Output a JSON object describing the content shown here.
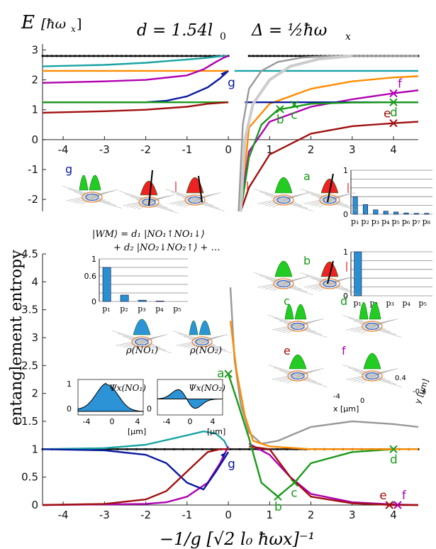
{
  "header": {
    "energy_label": "E",
    "energy_unit": "[ħω",
    "energy_unit_sub": "x",
    "energy_unit_close": "]",
    "d_param": "d = 1.54l",
    "d_param_sub": "0",
    "delta_param": "Δ = ½ħω",
    "delta_param_sub": "x"
  },
  "state_formula": {
    "line1": "|WM⟩ = d₁ |NO₁↑NO₁↓⟩",
    "line2": "+ d₂ |NO₂↓NO₂↑⟩ + …"
  },
  "inset_labels": {
    "rho1": "ρ(NO₁)",
    "rho2": "ρ(NO₂)",
    "psi1": "Ψx(NO₁)",
    "psi2": "Ψx(NO₂)",
    "psi_unit": "[μm]",
    "psi_ticks": [
      "-4",
      "0",
      "4"
    ],
    "psi_yticks": [
      "1",
      "0"
    ],
    "density_panels": [
      "g",
      "a",
      "b",
      "c",
      "d",
      "e",
      "f"
    ],
    "axis_x": "x [μm]",
    "axis_y": "y [μm]",
    "axis_ticks": [
      "-4",
      "0",
      "4",
      "0.4",
      "-0.4"
    ]
  },
  "colors": {
    "black": "#111111",
    "gray": "#999999",
    "lightgray": "#cccccc",
    "teal": "#1aa3a3",
    "orange": "#ff8c00",
    "magenta": "#b000b0",
    "blue": "#0a1a9c",
    "green": "#1a9a1a",
    "red": "#a01010",
    "bar": "#2a8fd0",
    "density_green": "#22cc22",
    "density_red": "#ee2222",
    "density_blue": "#2b93d6"
  },
  "chart_data": [
    {
      "type": "line",
      "title": "",
      "xlabel": "",
      "ylabel": "E [ħωx]",
      "xlim": [
        -4.5,
        4.6
      ],
      "ylim": [
        -2.4,
        3.2
      ],
      "xticks": [
        -4,
        -3,
        -2,
        -1,
        0,
        1,
        2,
        3,
        4
      ],
      "yticks": [
        -2,
        -1,
        0,
        1,
        2,
        3
      ],
      "series": [
        {
          "color": "black",
          "x": [
            -4.5,
            0
          ],
          "y": [
            2.8,
            2.8
          ]
        },
        {
          "color": "black",
          "x": [
            0.5,
            4.6
          ],
          "y": [
            2.8,
            2.8
          ]
        },
        {
          "color": "teal",
          "x": [
            -4.5,
            -3,
            -2,
            -1,
            -0.5,
            -0.2,
            0
          ],
          "y": [
            2.45,
            2.5,
            2.57,
            2.68,
            2.74,
            2.79,
            2.8
          ]
        },
        {
          "color": "teal",
          "x": [
            0.15,
            4.6
          ],
          "y": [
            2.3,
            2.3
          ]
        },
        {
          "color": "orange",
          "x": [
            -4.5,
            0
          ],
          "y": [
            2.3,
            2.3
          ]
        },
        {
          "color": "orange",
          "x": [
            0.3,
            0.5,
            1,
            2,
            3,
            4,
            4.6
          ],
          "y": [
            -2.4,
            0.4,
            1.2,
            1.7,
            1.95,
            2.08,
            2.12
          ]
        },
        {
          "color": "magenta",
          "x": [
            -4.5,
            -3,
            -2,
            -1,
            -0.6,
            -0.3,
            -0.1,
            0
          ],
          "y": [
            1.9,
            1.95,
            2.0,
            2.15,
            2.35,
            2.6,
            2.75,
            2.8
          ]
        },
        {
          "color": "magenta",
          "x": [
            0.28,
            0.5,
            1,
            2,
            3,
            4,
            4.6
          ],
          "y": [
            -2.4,
            -0.4,
            0.6,
            1.1,
            1.35,
            1.55,
            1.65
          ]
        },
        {
          "color": "blue",
          "x": [
            -4.5,
            -2,
            -1.5,
            -1,
            -0.5,
            -0.2,
            0
          ],
          "y": [
            1.25,
            1.25,
            1.3,
            1.45,
            1.75,
            2.05,
            2.3
          ]
        },
        {
          "color": "blue",
          "x": [
            0.4,
            4.6
          ],
          "y": [
            1.25,
            1.25
          ]
        },
        {
          "color": "green",
          "x": [
            -4.5,
            0
          ],
          "y": [
            1.25,
            1.25
          ]
        },
        {
          "color": "green",
          "x": [
            0.3,
            0.5,
            0.8,
            1.2,
            2,
            3,
            4,
            4.6
          ],
          "y": [
            -2.4,
            -0.6,
            0.5,
            1.0,
            1.2,
            1.24,
            1.25,
            1.25
          ]
        },
        {
          "color": "red",
          "x": [
            -4.5,
            -3,
            -2,
            -1,
            -0.5,
            0
          ],
          "y": [
            0.9,
            0.95,
            1.0,
            1.1,
            1.2,
            1.25
          ]
        },
        {
          "color": "red",
          "x": [
            0.3,
            0.5,
            1,
            2,
            3,
            4,
            4.6
          ],
          "y": [
            -2.4,
            -1.6,
            -0.5,
            0.2,
            0.45,
            0.55,
            0.6
          ]
        },
        {
          "color": "gray",
          "x": [
            0.25,
            0.35,
            0.5,
            0.8,
            1.2,
            1.8,
            2.5,
            4.6
          ],
          "y": [
            -2.4,
            0.5,
            1.7,
            2.3,
            2.6,
            2.75,
            2.8,
            2.8
          ]
        },
        {
          "color": "lightgray",
          "x": [
            0.3,
            0.4,
            0.6,
            1,
            1.5,
            2.2,
            3
          ],
          "y": [
            -2.4,
            0.0,
            1.2,
            2.0,
            2.45,
            2.7,
            2.8
          ]
        }
      ],
      "markers": [
        {
          "label": "g",
          "x": -0.05,
          "y": 2.3,
          "color": "blue",
          "symbol": "arrow"
        },
        {
          "label": "b",
          "x": 1.25,
          "y": 1.02,
          "color": "green",
          "symbol": "x"
        },
        {
          "label": "c",
          "x": 1.6,
          "y": 1.17,
          "color": "green",
          "symbol": "x"
        },
        {
          "label": "d",
          "x": 4.0,
          "y": 1.25,
          "color": "green",
          "symbol": "x"
        },
        {
          "label": "e",
          "x": 4.0,
          "y": 0.55,
          "color": "red",
          "symbol": "x"
        },
        {
          "label": "f",
          "x": 4.0,
          "y": 1.55,
          "color": "magenta",
          "symbol": "x"
        }
      ]
    },
    {
      "type": "line",
      "title": "",
      "xlabel": "−1/g  [√2 l₀ ħωx]⁻¹",
      "ylabel": "entanglement entropy",
      "xlim": [
        -4.5,
        4.6
      ],
      "ylim": [
        0,
        4.5
      ],
      "xticks": [
        -4,
        -3,
        -2,
        -1,
        0,
        1,
        2,
        3,
        4
      ],
      "yticks": [
        0,
        0.5,
        1,
        1.5,
        2,
        2.5,
        3,
        3.5,
        4,
        4.5
      ],
      "series": [
        {
          "color": "black",
          "x": [
            -4.5,
            4.6
          ],
          "y": [
            1.0,
            1.0
          ]
        },
        {
          "color": "teal",
          "x": [
            -4.5,
            -3,
            -2,
            -1,
            -0.6,
            -0.3,
            -0.1,
            0
          ],
          "y": [
            1.0,
            1.02,
            1.08,
            1.25,
            1.32,
            1.28,
            1.15,
            1.0
          ]
        },
        {
          "color": "magenta",
          "x": [
            -4.5,
            -2,
            -1.5,
            -1,
            -0.5,
            -0.2,
            0
          ],
          "y": [
            0.0,
            0.02,
            0.05,
            0.15,
            0.4,
            0.75,
            1.05
          ]
        },
        {
          "color": "magenta",
          "x": [
            0.5,
            1,
            1.5,
            2,
            3,
            4,
            4.6
          ],
          "y": [
            1.1,
            0.9,
            0.5,
            0.2,
            0.05,
            0.01,
            0.0
          ]
        },
        {
          "color": "blue",
          "x": [
            -4.5,
            -3,
            -2,
            -1.5,
            -1,
            -0.6,
            -0.3,
            0
          ],
          "y": [
            1.0,
            0.98,
            0.9,
            0.75,
            0.4,
            0.28,
            0.6,
            0.95
          ]
        },
        {
          "color": "red",
          "x": [
            -4.5,
            -3,
            -2,
            -1.5,
            -1,
            -0.5,
            -0.2,
            0
          ],
          "y": [
            0.0,
            0.02,
            0.1,
            0.25,
            0.6,
            0.95,
            1.0,
            1.0
          ]
        },
        {
          "color": "red",
          "x": [
            0.5,
            1,
            1.5,
            2,
            3,
            4,
            4.6
          ],
          "y": [
            1.05,
            1.0,
            0.5,
            0.15,
            0.03,
            0.0,
            0.0
          ]
        },
        {
          "color": "green",
          "x": [
            0,
            0.2,
            0.5,
            0.8,
            1.2,
            1.6,
            2,
            3,
            4,
            4.6
          ],
          "y": [
            2.35,
            1.9,
            1.2,
            0.4,
            0.15,
            0.4,
            0.75,
            0.95,
            1.0,
            1.0
          ]
        },
        {
          "color": "gray",
          "x": [
            0.05,
            0.15,
            0.3,
            0.5,
            0.8,
            1.2,
            2,
            3,
            4,
            4.6
          ],
          "y": [
            3.9,
            2.6,
            1.8,
            1.3,
            1.1,
            1.15,
            1.4,
            1.5,
            1.45,
            1.4
          ]
        },
        {
          "color": "orange",
          "x": [
            0.05,
            0.2,
            0.4,
            0.6,
            1,
            2,
            4.6
          ],
          "y": [
            3.3,
            2.4,
            1.6,
            1.15,
            1.05,
            1.0,
            1.0
          ]
        }
      ],
      "markers": [
        {
          "label": "g",
          "x": -0.05,
          "y": 0.95,
          "color": "blue",
          "symbol": "arrow"
        },
        {
          "label": "a",
          "x": 0.0,
          "y": 2.35,
          "color": "green",
          "symbol": "x"
        },
        {
          "label": "b",
          "x": 1.2,
          "y": 0.15,
          "color": "green",
          "symbol": "x"
        },
        {
          "label": "c",
          "x": 1.6,
          "y": 0.4,
          "color": "green",
          "symbol": "x"
        },
        {
          "label": "d",
          "x": 4.0,
          "y": 1.0,
          "color": "green",
          "symbol": "x"
        },
        {
          "label": "e",
          "x": 3.9,
          "y": 0.0,
          "color": "red",
          "symbol": "x"
        },
        {
          "label": "f",
          "x": 4.1,
          "y": 0.0,
          "color": "magenta",
          "symbol": "x"
        }
      ]
    },
    {
      "type": "bar",
      "categories": [
        "p₁",
        "p₂",
        "p₃",
        "p₄",
        "p₅"
      ],
      "values": [
        0.8,
        0.15,
        0.03,
        0.01,
        0.0
      ],
      "yticks": [
        "1",
        "0.6",
        "0"
      ],
      "ylim": [
        0,
        1
      ]
    },
    {
      "type": "bar",
      "categories": [
        "p₁",
        "p₂",
        "p₃",
        "p₄",
        "p₅",
        "p₆",
        "p₇",
        "p₈"
      ],
      "values": [
        0.4,
        0.22,
        0.1,
        0.07,
        0.05,
        0.03,
        0.02,
        0.02
      ],
      "yticks": [
        "1",
        "0"
      ],
      "ylim": [
        0,
        1
      ]
    },
    {
      "type": "bar",
      "categories": [
        "p₁",
        "p₂",
        "p₃",
        "p₄",
        "p₅"
      ],
      "values": [
        1.0,
        0.0,
        0.0,
        0.0,
        0.0
      ],
      "yticks": [
        "1",
        "0"
      ],
      "ylim": [
        0,
        1
      ]
    }
  ]
}
